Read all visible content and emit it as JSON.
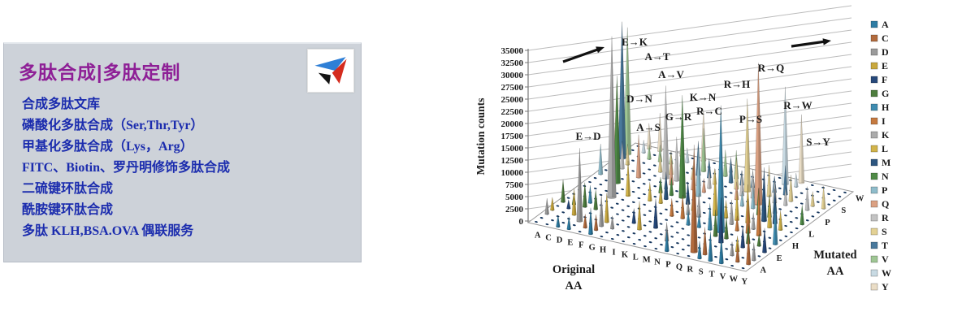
{
  "panel": {
    "title": "多肽合成|多肽定制",
    "logo": "triangle-bird-logo",
    "services": [
      "合成多肽文库",
      "磷酸化多肽合成（Ser,Thr,Tyr）",
      "甲基化多肽合成（Lys，Arg）",
      "FITC、Biotin、罗丹明修饰多肽合成",
      "二硫键环肽合成",
      "酰胺键环肽合成",
      "多肽 KLH,BSA.OVA 偶联服务"
    ],
    "colors": {
      "background": "#cdd2d9",
      "title": "#8e1f96",
      "text": "#1b2cae"
    }
  },
  "chart_data": {
    "type": "bar",
    "subtype": "3d-cone-spike-chart",
    "title": "",
    "ylabel": "Mutation counts",
    "xlabel": "Original AA",
    "depth_label": "Mutated AA",
    "ylim": [
      0,
      35000
    ],
    "ytick_step": 2500,
    "yticks": [
      "0",
      "2500",
      "5000",
      "7500",
      "10000",
      "12500",
      "15000",
      "17500",
      "20000",
      "22500",
      "25000",
      "27500",
      "30000",
      "32500",
      "35000"
    ],
    "categories": [
      "A",
      "C",
      "D",
      "E",
      "F",
      "G",
      "H",
      "I",
      "K",
      "L",
      "M",
      "N",
      "P",
      "Q",
      "R",
      "S",
      "T",
      "V",
      "W",
      "Y"
    ],
    "depth_categories": [
      "A",
      "C",
      "D",
      "E",
      "F",
      "G",
      "H",
      "I",
      "K",
      "L",
      "M",
      "N",
      "P",
      "Q",
      "R",
      "S",
      "T",
      "V",
      "W",
      "Y"
    ],
    "depth_tick_labels": [
      "A",
      "E",
      "H",
      "L",
      "P",
      "S",
      "W"
    ],
    "grid": true,
    "legend_position": "right",
    "legend": [
      {
        "aa": "A",
        "color": "#2E7CA3"
      },
      {
        "aa": "C",
        "color": "#B26B3D"
      },
      {
        "aa": "D",
        "color": "#9B9B9B"
      },
      {
        "aa": "E",
        "color": "#C9A83E"
      },
      {
        "aa": "F",
        "color": "#27497B"
      },
      {
        "aa": "G",
        "color": "#4E7D3E"
      },
      {
        "aa": "H",
        "color": "#3F8CB0"
      },
      {
        "aa": "I",
        "color": "#C57A40"
      },
      {
        "aa": "K",
        "color": "#ABABAB"
      },
      {
        "aa": "L",
        "color": "#D2B44A"
      },
      {
        "aa": "M",
        "color": "#2D567F"
      },
      {
        "aa": "N",
        "color": "#4F8A47"
      },
      {
        "aa": "P",
        "color": "#8FBCCB"
      },
      {
        "aa": "Q",
        "color": "#DBA183"
      },
      {
        "aa": "R",
        "color": "#C3C3C3"
      },
      {
        "aa": "S",
        "color": "#E3D194"
      },
      {
        "aa": "T",
        "color": "#49799C"
      },
      {
        "aa": "V",
        "color": "#9FC694"
      },
      {
        "aa": "W",
        "color": "#C8DAE3"
      },
      {
        "aa": "Y",
        "color": "#EADDC6"
      }
    ],
    "annotated_mutations": [
      {
        "from": "E",
        "to": "D",
        "label": "E→D",
        "value": 15000
      },
      {
        "from": "E",
        "to": "K",
        "label": "E→K",
        "value": 33000
      },
      {
        "from": "A",
        "to": "T",
        "label": "A→T",
        "value": 28000
      },
      {
        "from": "A",
        "to": "V",
        "label": "A→V",
        "value": 26000
      },
      {
        "from": "D",
        "to": "N",
        "label": "D→N",
        "value": 22000
      },
      {
        "from": "A",
        "to": "S",
        "label": "A→S",
        "value": 16000
      },
      {
        "from": "G",
        "to": "R",
        "label": "G→R",
        "value": 19000
      },
      {
        "from": "K",
        "to": "N",
        "label": "K→N",
        "value": 21000
      },
      {
        "from": "R",
        "to": "C",
        "label": "R→C",
        "value": 22000
      },
      {
        "from": "R",
        "to": "H",
        "label": "R→H",
        "value": 26000
      },
      {
        "from": "R",
        "to": "Q",
        "label": "R→Q",
        "value": 29000
      },
      {
        "from": "P",
        "to": "S",
        "label": "P→S",
        "value": 19000
      },
      {
        "from": "R",
        "to": "W",
        "label": "R→W",
        "value": 20000
      },
      {
        "from": "S",
        "to": "Y",
        "label": "S→Y",
        "value": 14000
      }
    ],
    "spikes": [
      [
        "A",
        "D",
        3200
      ],
      [
        "A",
        "E",
        2600
      ],
      [
        "A",
        "G",
        4600
      ],
      [
        "A",
        "P",
        6200
      ],
      [
        "C",
        "F",
        1800
      ],
      [
        "C",
        "G",
        2400
      ],
      [
        "C",
        "R",
        5600
      ],
      [
        "C",
        "S",
        4200
      ],
      [
        "C",
        "W",
        2600
      ],
      [
        "C",
        "Y",
        5200
      ],
      [
        "D",
        "A",
        2400
      ],
      [
        "D",
        "E",
        5400
      ],
      [
        "D",
        "G",
        5000
      ],
      [
        "D",
        "H",
        3600
      ],
      [
        "D",
        "V",
        3000
      ],
      [
        "D",
        "Y",
        7800
      ],
      [
        "E",
        "A",
        2600
      ],
      [
        "E",
        "G",
        4000
      ],
      [
        "E",
        "Q",
        8800
      ],
      [
        "E",
        "V",
        3400
      ],
      [
        "F",
        "C",
        2800
      ],
      [
        "F",
        "L",
        7200
      ],
      [
        "F",
        "S",
        3600
      ],
      [
        "F",
        "V",
        2400
      ],
      [
        "F",
        "Y",
        4400
      ],
      [
        "G",
        "A",
        5400
      ],
      [
        "G",
        "C",
        3200
      ],
      [
        "G",
        "D",
        6400
      ],
      [
        "G",
        "E",
        6000
      ],
      [
        "G",
        "S",
        4800
      ],
      [
        "G",
        "V",
        4600
      ],
      [
        "G",
        "W",
        3000
      ],
      [
        "H",
        "D",
        2600
      ],
      [
        "H",
        "L",
        3800
      ],
      [
        "H",
        "N",
        3200
      ],
      [
        "H",
        "P",
        2400
      ],
      [
        "H",
        "Q",
        5000
      ],
      [
        "H",
        "R",
        9000
      ],
      [
        "H",
        "Y",
        10500
      ],
      [
        "I",
        "F",
        3000
      ],
      [
        "I",
        "L",
        3400
      ],
      [
        "I",
        "M",
        5600
      ],
      [
        "I",
        "N",
        3600
      ],
      [
        "I",
        "S",
        2800
      ],
      [
        "I",
        "T",
        7000
      ],
      [
        "I",
        "V",
        8800
      ],
      [
        "K",
        "E",
        5800
      ],
      [
        "K",
        "Q",
        4400
      ],
      [
        "K",
        "R",
        6600
      ],
      [
        "K",
        "T",
        4000
      ],
      [
        "L",
        "F",
        6000
      ],
      [
        "L",
        "I",
        3600
      ],
      [
        "L",
        "M",
        4600
      ],
      [
        "L",
        "P",
        10000
      ],
      [
        "L",
        "Q",
        2800
      ],
      [
        "L",
        "R",
        4000
      ],
      [
        "L",
        "S",
        3200
      ],
      [
        "L",
        "V",
        5400
      ],
      [
        "L",
        "W",
        2600
      ],
      [
        "M",
        "I",
        4800
      ],
      [
        "M",
        "K",
        3000
      ],
      [
        "M",
        "L",
        4400
      ],
      [
        "M",
        "T",
        5200
      ],
      [
        "M",
        "V",
        5800
      ],
      [
        "N",
        "D",
        3800
      ],
      [
        "N",
        "H",
        3000
      ],
      [
        "N",
        "I",
        2600
      ],
      [
        "N",
        "K",
        4800
      ],
      [
        "N",
        "S",
        6400
      ],
      [
        "N",
        "T",
        3000
      ],
      [
        "N",
        "Y",
        3400
      ],
      [
        "P",
        "A",
        4400
      ],
      [
        "P",
        "H",
        2800
      ],
      [
        "P",
        "L",
        9500
      ],
      [
        "P",
        "Q",
        3600
      ],
      [
        "P",
        "R",
        5000
      ],
      [
        "P",
        "T",
        3200
      ],
      [
        "Q",
        "E",
        4600
      ],
      [
        "Q",
        "H",
        5400
      ],
      [
        "Q",
        "K",
        4000
      ],
      [
        "Q",
        "L",
        3600
      ],
      [
        "Q",
        "P",
        3000
      ],
      [
        "Q",
        "R",
        5800
      ],
      [
        "R",
        "G",
        5400
      ],
      [
        "R",
        "K",
        5000
      ],
      [
        "R",
        "L",
        6000
      ],
      [
        "R",
        "P",
        4600
      ],
      [
        "R",
        "S",
        6400
      ],
      [
        "R",
        "T",
        3400
      ],
      [
        "S",
        "A",
        3600
      ],
      [
        "S",
        "C",
        5600
      ],
      [
        "S",
        "F",
        9200
      ],
      [
        "S",
        "G",
        4400
      ],
      [
        "S",
        "I",
        3000
      ],
      [
        "S",
        "L",
        7800
      ],
      [
        "S",
        "N",
        5400
      ],
      [
        "S",
        "P",
        6600
      ],
      [
        "S",
        "R",
        4800
      ],
      [
        "S",
        "T",
        6000
      ],
      [
        "S",
        "W",
        2800
      ],
      [
        "T",
        "A",
        6000
      ],
      [
        "T",
        "I",
        7000
      ],
      [
        "T",
        "K",
        3400
      ],
      [
        "T",
        "M",
        11000
      ],
      [
        "T",
        "N",
        4600
      ],
      [
        "T",
        "P",
        5000
      ],
      [
        "T",
        "R",
        3600
      ],
      [
        "T",
        "S",
        5400
      ],
      [
        "V",
        "A",
        5600
      ],
      [
        "V",
        "D",
        2800
      ],
      [
        "V",
        "E",
        3200
      ],
      [
        "V",
        "F",
        4400
      ],
      [
        "V",
        "G",
        4000
      ],
      [
        "V",
        "I",
        9800
      ],
      [
        "V",
        "L",
        6600
      ],
      [
        "V",
        "M",
        7000
      ],
      [
        "W",
        "C",
        3600
      ],
      [
        "W",
        "G",
        2400
      ],
      [
        "W",
        "L",
        4000
      ],
      [
        "W",
        "R",
        4800
      ],
      [
        "W",
        "S",
        3000
      ],
      [
        "Y",
        "C",
        6400
      ],
      [
        "Y",
        "D",
        3600
      ],
      [
        "Y",
        "F",
        5000
      ],
      [
        "Y",
        "H",
        8600
      ],
      [
        "Y",
        "N",
        4000
      ],
      [
        "Y",
        "S",
        4600
      ]
    ]
  }
}
